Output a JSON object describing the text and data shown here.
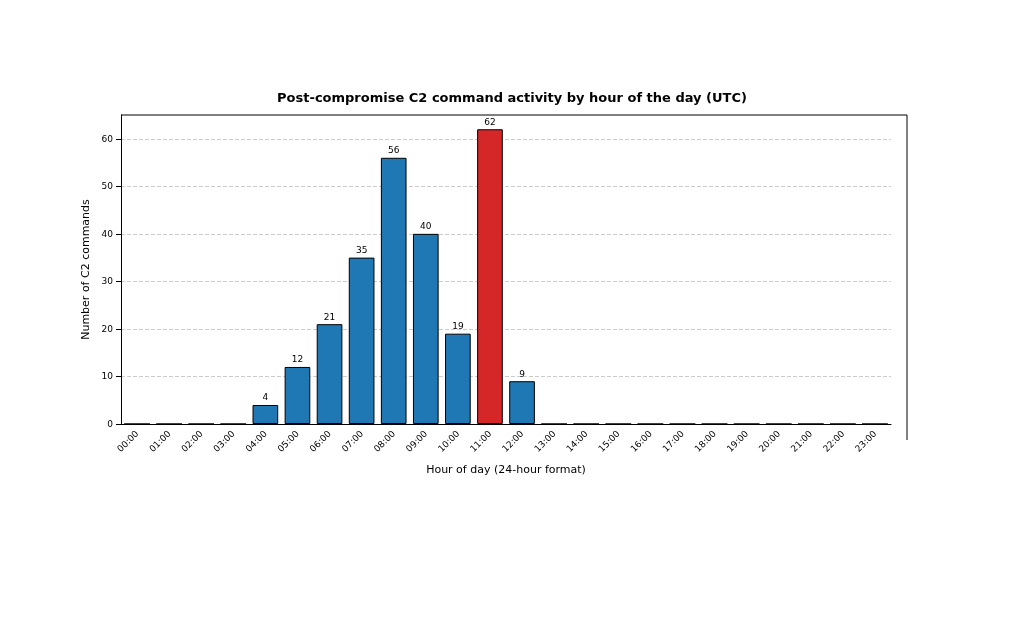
{
  "chart_data": {
    "type": "bar",
    "title": "Post-compromise C2 command activity by hour of the day (UTC)",
    "xlabel": "Hour of day (24-hour format)",
    "ylabel": "Number of C2 commands",
    "categories": [
      "00:00",
      "01:00",
      "02:00",
      "03:00",
      "04:00",
      "05:00",
      "06:00",
      "07:00",
      "08:00",
      "09:00",
      "10:00",
      "11:00",
      "12:00",
      "13:00",
      "14:00",
      "15:00",
      "16:00",
      "17:00",
      "18:00",
      "19:00",
      "20:00",
      "21:00",
      "22:00",
      "23:00"
    ],
    "values": [
      0,
      0,
      0,
      0,
      4,
      12,
      21,
      35,
      56,
      40,
      19,
      62,
      9,
      0,
      0,
      0,
      0,
      0,
      0,
      0,
      0,
      0,
      0,
      0
    ],
    "colors": [
      "#1f77b4",
      "#1f77b4",
      "#1f77b4",
      "#1f77b4",
      "#1f77b4",
      "#1f77b4",
      "#1f77b4",
      "#1f77b4",
      "#1f77b4",
      "#1f77b4",
      "#1f77b4",
      "#d62728",
      "#1f77b4",
      "#1f77b4",
      "#1f77b4",
      "#1f77b4",
      "#1f77b4",
      "#1f77b4",
      "#1f77b4",
      "#1f77b4",
      "#1f77b4",
      "#1f77b4",
      "#1f77b4",
      "#1f77b4"
    ],
    "value_labels": [
      null,
      null,
      null,
      null,
      "4",
      "12",
      "21",
      "35",
      "56",
      "40",
      "19",
      "62",
      "9",
      null,
      null,
      null,
      null,
      null,
      null,
      null,
      null,
      null,
      null,
      null
    ],
    "ylim": [
      0,
      65
    ],
    "yticks": [
      0,
      10,
      20,
      30,
      40,
      50,
      60
    ],
    "grid": "y"
  }
}
